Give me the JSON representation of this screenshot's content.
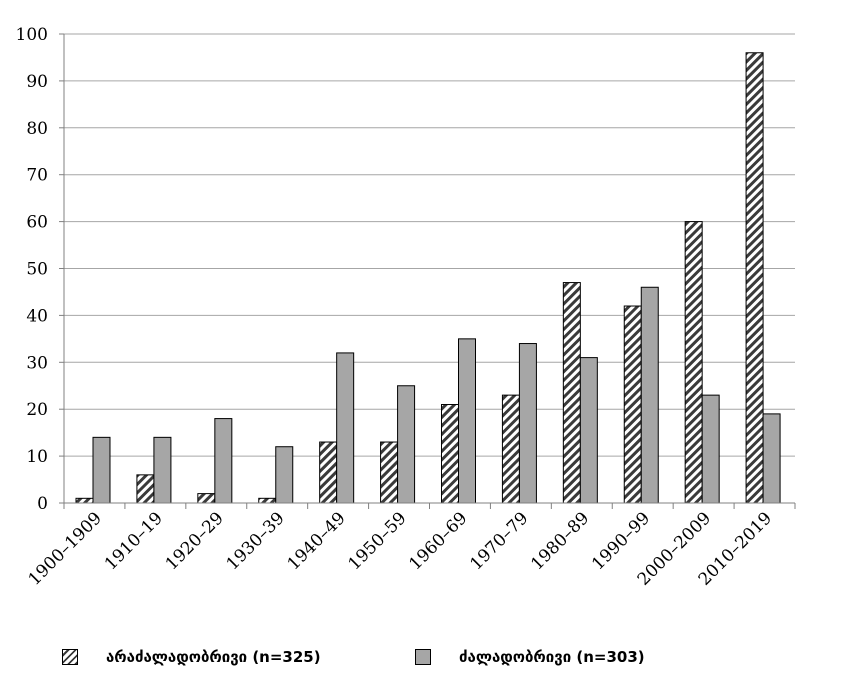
{
  "chart_data": {
    "type": "bar",
    "categories": [
      "1900–1909",
      "1910–19",
      "1920–29",
      "1930–39",
      "1940–49",
      "1950–59",
      "1960–69",
      "1970–79",
      "1980–89",
      "1990–99",
      "2000–2009",
      "2010–2019"
    ],
    "series": [
      {
        "name": "არაძალადობრივი (n=325)",
        "fill": "hatched",
        "color": "#ffffff",
        "values": [
          1,
          6,
          2,
          1,
          13,
          13,
          21,
          23,
          47,
          42,
          60,
          96
        ]
      },
      {
        "name": "ძალადობრივი (n=303)",
        "fill": "solid",
        "color": "#a6a6a6",
        "values": [
          14,
          14,
          18,
          12,
          32,
          25,
          35,
          34,
          31,
          46,
          23,
          19
        ]
      }
    ],
    "ylim": [
      0,
      100
    ],
    "yticks": [
      0,
      10,
      20,
      30,
      40,
      50,
      60,
      70,
      80,
      90,
      100
    ],
    "grid": true,
    "legend_position": "bottom",
    "title": "",
    "xlabel": "",
    "ylabel": ""
  },
  "colors": {
    "grid": "#a6a6a6",
    "axis": "#808080",
    "bar_outline": "#000000",
    "hatch": "#3a3a3a"
  }
}
